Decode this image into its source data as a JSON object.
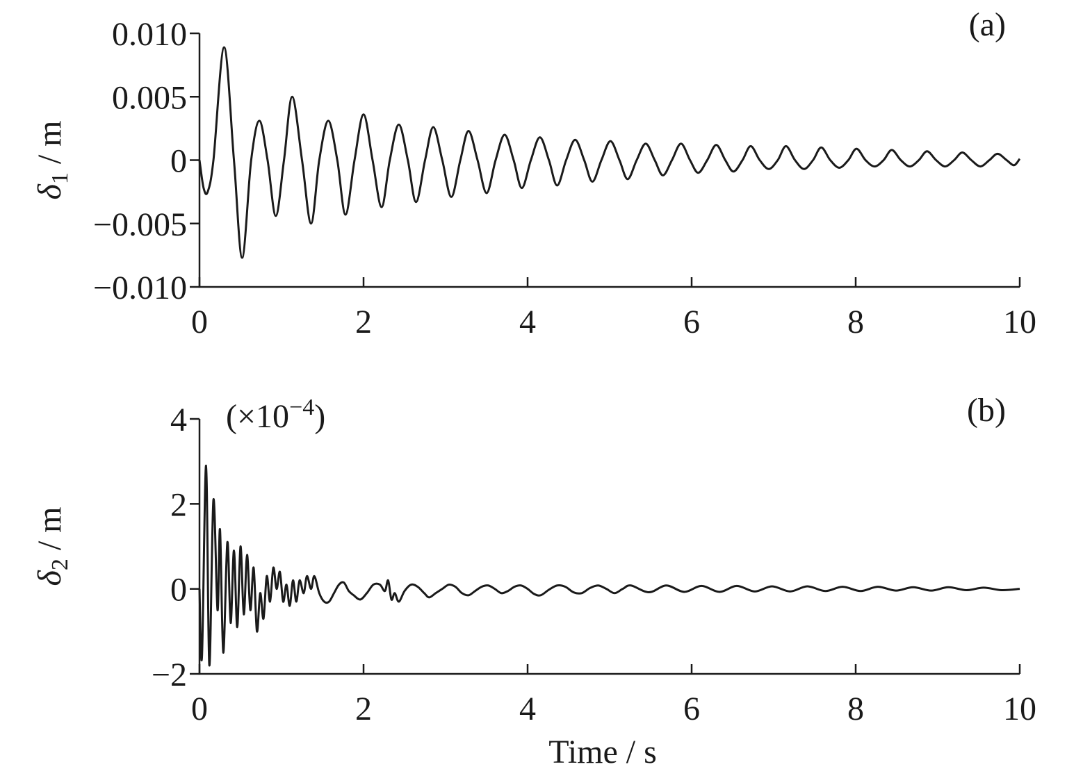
{
  "chart_data": [
    {
      "type": "line",
      "panel_label": "(a)",
      "ylabel": {
        "symbol": "δ",
        "subscript": "1",
        "unit": " / m"
      },
      "x": [
        0,
        0.05,
        0.1,
        0.17,
        0.3,
        0.42,
        0.52,
        0.63,
        0.73,
        0.83,
        0.93,
        1.03,
        1.13,
        1.25,
        1.36,
        1.46,
        1.57,
        1.68,
        1.78,
        1.89,
        2.0,
        2.11,
        2.22,
        2.32,
        2.43,
        2.54,
        2.64,
        2.75,
        2.85,
        2.96,
        3.07,
        3.18,
        3.28,
        3.39,
        3.5,
        3.61,
        3.72,
        3.83,
        3.93,
        4.04,
        4.15,
        4.26,
        4.36,
        4.47,
        4.58,
        4.69,
        4.79,
        4.9,
        5.01,
        5.12,
        5.22,
        5.33,
        5.44,
        5.55,
        5.65,
        5.76,
        5.87,
        5.98,
        6.08,
        6.19,
        6.3,
        6.41,
        6.51,
        6.62,
        6.72,
        6.83,
        6.94,
        7.05,
        7.15,
        7.26,
        7.37,
        7.48,
        7.58,
        7.69,
        7.8,
        7.91,
        8.01,
        8.12,
        8.23,
        8.34,
        8.44,
        8.55,
        8.66,
        8.77,
        8.87,
        8.98,
        9.09,
        9.2,
        9.3,
        9.41,
        9.52,
        9.63,
        9.73,
        9.84,
        9.93,
        10
      ],
      "series": [
        {
          "color": "#1a1a1a",
          "values": [
            0,
            -0.0022,
            -0.0025,
            0,
            0.0089,
            0,
            -0.0077,
            0,
            0.0031,
            0,
            -0.0044,
            0,
            0.005,
            0,
            -0.005,
            0,
            0.0031,
            0,
            -0.0043,
            0,
            0.0036,
            0,
            -0.0037,
            0,
            0.0028,
            0,
            -0.0033,
            0,
            0.0026,
            0,
            -0.0029,
            0,
            0.0023,
            0,
            -0.0026,
            0,
            0.002,
            0,
            -0.0022,
            0,
            0.0018,
            0,
            -0.002,
            0,
            0.0016,
            0,
            -0.0017,
            0,
            0.0015,
            0,
            -0.0015,
            0,
            0.0013,
            0,
            -0.0012,
            0,
            0.0013,
            0,
            -0.001,
            0,
            0.0012,
            0,
            -0.0009,
            0,
            0.0011,
            0,
            -0.0007,
            0,
            0.0011,
            0,
            -0.0007,
            0,
            0.001,
            0,
            -0.0006,
            0,
            0.0009,
            0,
            -0.0005,
            0,
            0.0008,
            0,
            -0.0005,
            0,
            0.0007,
            0,
            -0.0005,
            0,
            0.0006,
            0,
            -0.0005,
            0,
            0.0005,
            0,
            -0.0004,
            0.0001
          ]
        }
      ],
      "xlim": [
        0,
        10
      ],
      "xticks": [
        0,
        2,
        4,
        6,
        8,
        10
      ],
      "ylim": [
        -0.01,
        0.01
      ],
      "yticks": [
        {
          "value": -0.01,
          "label": "−0.010"
        },
        {
          "value": -0.005,
          "label": "−0.005"
        },
        0,
        {
          "value": 0.005,
          "label": "0.005"
        },
        {
          "value": 0.01,
          "label": "0.010"
        }
      ]
    },
    {
      "type": "line",
      "panel_label": "(b)",
      "ylabel": {
        "symbol": "δ",
        "subscript": "2",
        "unit": " / m"
      },
      "multiplier": {
        "base": "(×10",
        "exponent": "−4",
        "close": ")"
      },
      "xlabel": "Time / s",
      "x": [
        0,
        0.03,
        0.08,
        0.12,
        0.17,
        0.22,
        0.25,
        0.29,
        0.34,
        0.38,
        0.42,
        0.46,
        0.5,
        0.54,
        0.58,
        0.62,
        0.66,
        0.7,
        0.74,
        0.78,
        0.82,
        0.86,
        0.9,
        0.94,
        0.98,
        1.02,
        1.06,
        1.1,
        1.14,
        1.18,
        1.22,
        1.27,
        1.31,
        1.36,
        1.4,
        1.46,
        1.52,
        1.58,
        1.64,
        1.7,
        1.76,
        1.82,
        1.88,
        1.96,
        2.04,
        2.12,
        2.2,
        2.26,
        2.3,
        2.34,
        2.38,
        2.43,
        2.5,
        2.58,
        2.66,
        2.74,
        2.8,
        2.88,
        2.96,
        3.04,
        3.12,
        3.2,
        3.28,
        3.36,
        3.44,
        3.52,
        3.6,
        3.68,
        3.76,
        3.84,
        3.92,
        4.0,
        4.08,
        4.16,
        4.26,
        4.36,
        4.46,
        4.56,
        4.66,
        4.76,
        4.86,
        4.96,
        5.06,
        5.16,
        5.26,
        5.48,
        5.69,
        5.91,
        6.12,
        6.34,
        6.55,
        6.77,
        6.98,
        7.2,
        7.41,
        7.63,
        7.84,
        8.06,
        8.27,
        8.49,
        8.7,
        8.92,
        9.13,
        9.35,
        9.56,
        9.78,
        10
      ],
      "series": [
        {
          "color": "#1a1a1a",
          "values": [
            0,
            -1.6,
            2.9,
            -1.8,
            2.1,
            -0.5,
            1.4,
            -1.5,
            1.1,
            -0.8,
            0.9,
            -0.9,
            1.0,
            -0.6,
            0.8,
            -0.5,
            0.5,
            -1.0,
            -0.1,
            -0.7,
            0.3,
            -0.3,
            0.5,
            0.0,
            0.4,
            -0.3,
            0.1,
            -0.4,
            0.2,
            -0.3,
            0.2,
            -0.1,
            0.3,
            0.0,
            0.3,
            -0.1,
            -0.3,
            -0.3,
            -0.1,
            0.1,
            0.15,
            -0.05,
            -0.15,
            -0.25,
            -0.1,
            0.1,
            0.1,
            -0.05,
            0.2,
            -0.25,
            -0.1,
            -0.3,
            -0.05,
            0.1,
            0.05,
            -0.1,
            -0.2,
            -0.1,
            0.0,
            0.1,
            0.05,
            -0.1,
            -0.15,
            -0.05,
            0.05,
            0.08,
            0.0,
            -0.1,
            -0.05,
            0.05,
            0.08,
            0.0,
            -0.12,
            -0.15,
            -0.02,
            0.08,
            0.05,
            -0.08,
            -0.1,
            0.02,
            0.08,
            0.0,
            -0.1,
            0.0,
            0.08,
            -0.08,
            0.08,
            -0.07,
            0.07,
            -0.07,
            0.07,
            -0.06,
            0.06,
            -0.06,
            0.06,
            -0.05,
            0.05,
            -0.05,
            0.05,
            -0.04,
            0.04,
            -0.04,
            0.04,
            -0.03,
            0.03,
            -0.03,
            0.0
          ]
        }
      ],
      "xlim": [
        0,
        10
      ],
      "xticks": [
        0,
        2,
        4,
        6,
        8,
        10
      ],
      "ylim": [
        -2,
        4
      ],
      "yticks": [
        {
          "value": -2,
          "label": "−2"
        },
        0,
        2,
        4
      ]
    }
  ]
}
